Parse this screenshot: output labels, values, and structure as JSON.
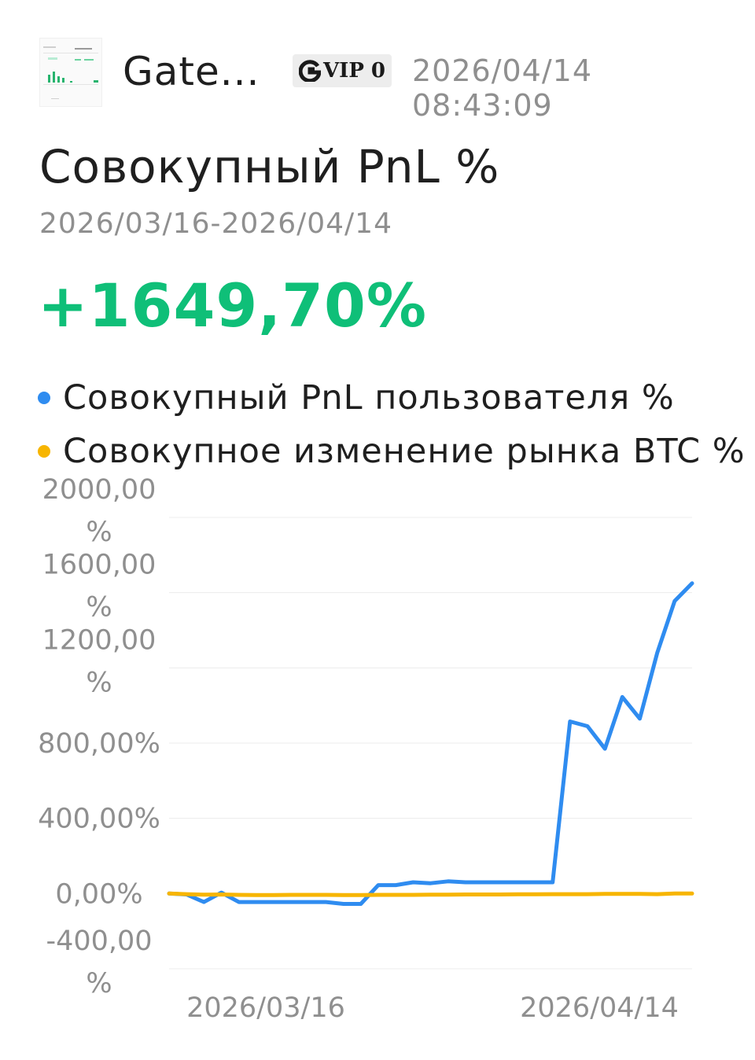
{
  "header": {
    "user_name": "Gate...",
    "avatar_icon": "chart-thumbnail-icon",
    "vip_icon": "gate-logo-icon",
    "vip_label": "VIP 0",
    "timestamp": "2026/04/14 08:43:09"
  },
  "title": "Совокупный PnL %",
  "date_range": "2026/03/16-2026/04/14",
  "pnl_value": "+1649,70%",
  "colors": {
    "positive": "#0fbf78",
    "series_user": "#2f8cf0",
    "series_btc": "#f7b500",
    "grid": "#ececec",
    "axis_text": "#8f8f8f"
  },
  "chart_data": {
    "type": "line",
    "title": "Совокупный PnL %",
    "ylim": [
      -400,
      2000
    ],
    "y_ticks": [
      {
        "value": 2000,
        "lines": [
          "2000,00",
          "%"
        ]
      },
      {
        "value": 1600,
        "lines": [
          "1600,00",
          "%"
        ]
      },
      {
        "value": 1200,
        "lines": [
          "1200,00",
          "%"
        ]
      },
      {
        "value": 800,
        "lines": [
          "800,00%"
        ]
      },
      {
        "value": 400,
        "lines": [
          "400,00%"
        ]
      },
      {
        "value": 0,
        "lines": [
          "0,00%"
        ]
      },
      {
        "value": -400,
        "lines": [
          "-400,00",
          "%"
        ]
      }
    ],
    "x_tick_labels": [
      "2026/03/16",
      "2026/04/14"
    ],
    "grid": true,
    "series": [
      {
        "name": "Совокупный PnL пользователя %",
        "color": "#2f8cf0",
        "values": [
          0,
          -5,
          -45,
          5,
          -45,
          -45,
          -45,
          -45,
          -45,
          -45,
          -55,
          -55,
          45,
          45,
          60,
          55,
          65,
          60,
          60,
          60,
          60,
          60,
          60,
          915,
          890,
          770,
          1045,
          930,
          1280,
          1555,
          1649.7
        ]
      },
      {
        "name": "Совокупное изменение рынка BTC %",
        "color": "#f7b500",
        "values": [
          0,
          -3,
          -6,
          -5,
          -7,
          -8,
          -8,
          -7,
          -7,
          -7,
          -8,
          -8,
          -7,
          -7,
          -7,
          -6,
          -6,
          -5,
          -5,
          -5,
          -4,
          -4,
          -3,
          -3,
          -3,
          -2,
          -2,
          -2,
          -3,
          0,
          0
        ]
      }
    ]
  }
}
